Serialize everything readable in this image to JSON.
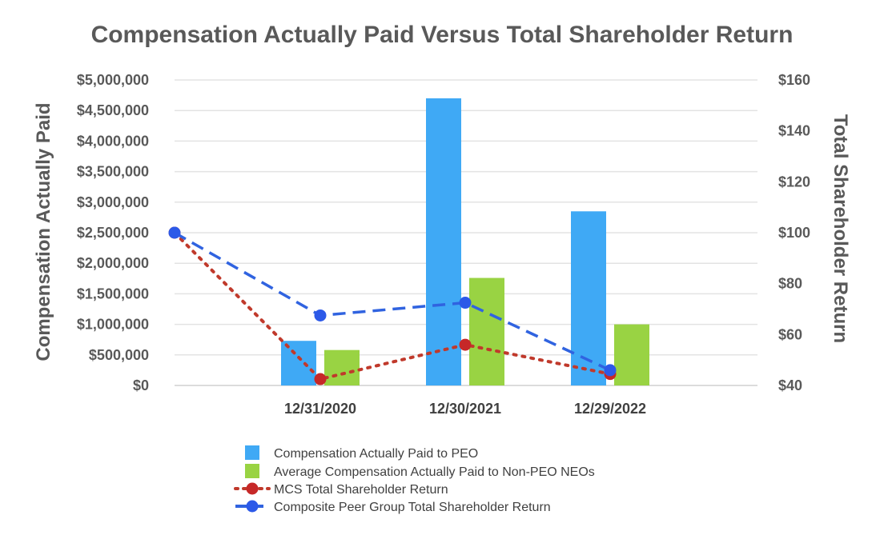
{
  "chart_data": {
    "type": "bar",
    "title": "Compensation Actually Paid Versus Total Shareholder Return",
    "ylabel_left": "Compensation Actually Paid",
    "ylabel_right": "Total Shareholder Return",
    "categories": [
      "",
      "12/31/2020",
      "12/30/2021",
      "12/29/2022"
    ],
    "ylim_left": [
      0,
      5000000
    ],
    "ylim_right": [
      40,
      160
    ],
    "left_ticks": [
      "$0",
      "$500,000",
      "$1,000,000",
      "$1,500,000",
      "$2,000,000",
      "$2,500,000",
      "$3,000,000",
      "$3,500,000",
      "$4,000,000",
      "$4,500,000",
      "$5,000,000"
    ],
    "right_ticks": [
      "$40",
      "$60",
      "$80",
      "$100",
      "$120",
      "$140",
      "$160"
    ],
    "grid": true,
    "legend_position": "bottom",
    "series": [
      {
        "name": "Compensation Actually Paid to PEO",
        "kind": "bar",
        "axis": "left",
        "color": "#3fa9f5",
        "values": [
          null,
          730000,
          4700000,
          2850000
        ]
      },
      {
        "name": "Average Compensation Actually Paid to Non-PEO NEOs",
        "kind": "bar",
        "axis": "left",
        "color": "#99d343",
        "values": [
          null,
          580000,
          1760000,
          1000000
        ]
      },
      {
        "name": "MCS Total Shareholder Return",
        "kind": "line",
        "style": "dotted",
        "axis": "right",
        "color": "#c0392b",
        "marker_color": "#c62828",
        "values": [
          100,
          42.5,
          56,
          44.5
        ]
      },
      {
        "name": "Composite Peer Group Total Shareholder Return",
        "kind": "line",
        "style": "dashed",
        "axis": "right",
        "color": "#3063e0",
        "marker_color": "#2c59e8",
        "values": [
          100,
          67.5,
          72.5,
          46
        ]
      }
    ]
  }
}
